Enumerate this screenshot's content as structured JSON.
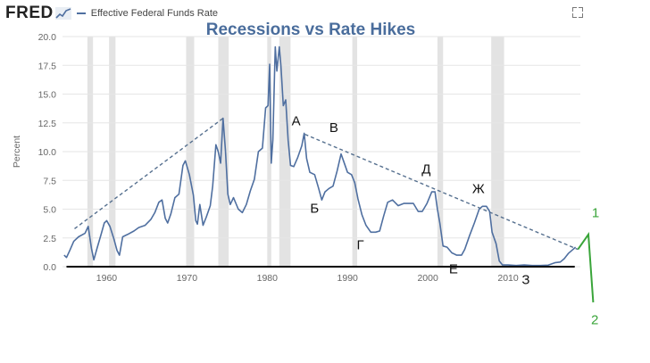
{
  "header": {
    "logo_text": "FRED",
    "legend_label": "Effective Federal Funds Rate"
  },
  "icons": {
    "logo_graph": "fred-graph-icon",
    "expand": "expand-icon"
  },
  "colors": {
    "series": "#4f6fa0",
    "recession": "#e3e3e3",
    "title": "#4a6d9c",
    "trend": "#56708f",
    "annotation": "#111111",
    "annotation_green": "#3aa53a"
  },
  "chart_data": {
    "type": "line",
    "title": "Recessions vs Rate Hikes",
    "ylabel": "Percent",
    "xlim": [
      1954.5,
      2019.0
    ],
    "ylim": [
      0,
      20
    ],
    "yticks": [
      "0.0",
      "2.5",
      "5.0",
      "7.5",
      "10.0",
      "12.5",
      "15.0",
      "17.5",
      "20.0"
    ],
    "xticks": [
      "1960",
      "1970",
      "1980",
      "1990",
      "2000",
      "2010"
    ],
    "grid": "horizontal",
    "recessions": [
      [
        1957.6,
        1958.3
      ],
      [
        1960.3,
        1961.1
      ],
      [
        1969.9,
        1970.9
      ],
      [
        1973.9,
        1975.2
      ],
      [
        1980.0,
        1980.5
      ],
      [
        1981.5,
        1982.9
      ],
      [
        1990.6,
        1991.2
      ],
      [
        2001.2,
        2001.9
      ],
      [
        2007.9,
        2009.5
      ]
    ],
    "series": [
      {
        "name": "Effective Federal Funds Rate",
        "points": [
          [
            1954.7,
            1.0
          ],
          [
            1955.0,
            0.8
          ],
          [
            1955.4,
            1.4
          ],
          [
            1955.9,
            2.2
          ],
          [
            1956.5,
            2.6
          ],
          [
            1957.3,
            2.9
          ],
          [
            1957.7,
            3.5
          ],
          [
            1958.1,
            1.6
          ],
          [
            1958.4,
            0.6
          ],
          [
            1958.8,
            1.6
          ],
          [
            1959.3,
            2.8
          ],
          [
            1959.7,
            3.8
          ],
          [
            1960.0,
            4.0
          ],
          [
            1960.4,
            3.5
          ],
          [
            1960.9,
            2.4
          ],
          [
            1961.3,
            1.4
          ],
          [
            1961.6,
            1.0
          ],
          [
            1962.0,
            2.6
          ],
          [
            1962.6,
            2.8
          ],
          [
            1963.4,
            3.1
          ],
          [
            1964.0,
            3.4
          ],
          [
            1964.8,
            3.6
          ],
          [
            1965.5,
            4.1
          ],
          [
            1966.0,
            4.7
          ],
          [
            1966.5,
            5.6
          ],
          [
            1966.9,
            5.8
          ],
          [
            1967.3,
            4.2
          ],
          [
            1967.6,
            3.8
          ],
          [
            1968.0,
            4.6
          ],
          [
            1968.5,
            6.0
          ],
          [
            1969.0,
            6.3
          ],
          [
            1969.5,
            8.8
          ],
          [
            1969.8,
            9.2
          ],
          [
            1970.3,
            8.0
          ],
          [
            1970.8,
            6.2
          ],
          [
            1971.1,
            4.0
          ],
          [
            1971.3,
            3.7
          ],
          [
            1971.6,
            5.4
          ],
          [
            1972.0,
            3.6
          ],
          [
            1972.4,
            4.3
          ],
          [
            1972.9,
            5.3
          ],
          [
            1973.2,
            7.0
          ],
          [
            1973.6,
            10.6
          ],
          [
            1973.9,
            10.0
          ],
          [
            1974.2,
            9.0
          ],
          [
            1974.5,
            12.9
          ],
          [
            1974.8,
            10.1
          ],
          [
            1975.1,
            6.3
          ],
          [
            1975.4,
            5.4
          ],
          [
            1975.8,
            6.0
          ],
          [
            1976.4,
            5.0
          ],
          [
            1976.9,
            4.7
          ],
          [
            1977.4,
            5.4
          ],
          [
            1977.9,
            6.6
          ],
          [
            1978.4,
            7.6
          ],
          [
            1978.9,
            10.0
          ],
          [
            1979.4,
            10.3
          ],
          [
            1979.8,
            13.8
          ],
          [
            1980.1,
            14.0
          ],
          [
            1980.3,
            17.6
          ],
          [
            1980.5,
            9.0
          ],
          [
            1980.7,
            11.0
          ],
          [
            1980.9,
            16.5
          ],
          [
            1981.0,
            19.1
          ],
          [
            1981.2,
            17.0
          ],
          [
            1981.5,
            19.1
          ],
          [
            1981.7,
            17.5
          ],
          [
            1982.0,
            14.0
          ],
          [
            1982.3,
            14.5
          ],
          [
            1982.6,
            11.0
          ],
          [
            1982.9,
            8.8
          ],
          [
            1983.3,
            8.7
          ],
          [
            1983.8,
            9.5
          ],
          [
            1984.3,
            10.5
          ],
          [
            1984.6,
            11.6
          ],
          [
            1984.9,
            9.4
          ],
          [
            1985.3,
            8.2
          ],
          [
            1985.9,
            8.0
          ],
          [
            1986.4,
            6.8
          ],
          [
            1986.8,
            5.8
          ],
          [
            1987.2,
            6.5
          ],
          [
            1987.7,
            6.8
          ],
          [
            1988.2,
            7.0
          ],
          [
            1988.7,
            8.3
          ],
          [
            1989.2,
            9.8
          ],
          [
            1989.5,
            9.2
          ],
          [
            1990.0,
            8.2
          ],
          [
            1990.5,
            8.0
          ],
          [
            1990.9,
            7.3
          ],
          [
            1991.3,
            5.9
          ],
          [
            1991.8,
            4.5
          ],
          [
            1992.3,
            3.6
          ],
          [
            1992.9,
            3.0
          ],
          [
            1993.5,
            3.0
          ],
          [
            1994.0,
            3.1
          ],
          [
            1994.5,
            4.4
          ],
          [
            1995.0,
            5.6
          ],
          [
            1995.6,
            5.8
          ],
          [
            1996.3,
            5.3
          ],
          [
            1997.0,
            5.5
          ],
          [
            1997.6,
            5.5
          ],
          [
            1998.2,
            5.5
          ],
          [
            1998.8,
            4.8
          ],
          [
            1999.3,
            4.8
          ],
          [
            1999.9,
            5.5
          ],
          [
            2000.5,
            6.5
          ],
          [
            2000.9,
            6.5
          ],
          [
            2001.2,
            5.0
          ],
          [
            2001.5,
            3.8
          ],
          [
            2001.9,
            1.8
          ],
          [
            2002.4,
            1.7
          ],
          [
            2003.0,
            1.2
          ],
          [
            2003.6,
            1.0
          ],
          [
            2004.2,
            1.0
          ],
          [
            2004.6,
            1.5
          ],
          [
            2005.2,
            2.7
          ],
          [
            2005.8,
            3.8
          ],
          [
            2006.4,
            5.0
          ],
          [
            2006.8,
            5.25
          ],
          [
            2007.3,
            5.25
          ],
          [
            2007.7,
            4.8
          ],
          [
            2008.0,
            3.0
          ],
          [
            2008.5,
            2.0
          ],
          [
            2008.9,
            0.5
          ],
          [
            2009.3,
            0.15
          ],
          [
            2010.0,
            0.15
          ],
          [
            2011.0,
            0.1
          ],
          [
            2012.0,
            0.15
          ],
          [
            2013.0,
            0.1
          ],
          [
            2014.0,
            0.1
          ],
          [
            2015.0,
            0.13
          ],
          [
            2015.9,
            0.36
          ],
          [
            2016.5,
            0.4
          ],
          [
            2017.0,
            0.7
          ],
          [
            2017.5,
            1.15
          ],
          [
            2018.0,
            1.45
          ],
          [
            2018.4,
            1.7
          ]
        ]
      }
    ],
    "trendlines": [
      {
        "from": [
          1956.0,
          3.3
        ],
        "to": [
          1974.7,
          13.0
        ]
      },
      {
        "from": [
          1984.7,
          11.5
        ],
        "to": [
          2018.7,
          1.5
        ]
      }
    ],
    "baseline_segments": [
      {
        "from": [
          1955.0,
          0.0
        ],
        "to": [
          2018.3,
          0.0
        ]
      }
    ],
    "annotations": [
      {
        "text": "А",
        "x": 1983.6,
        "y": 12.3
      },
      {
        "text": "Б",
        "x": 1985.9,
        "y": 4.7
      },
      {
        "text": "В",
        "x": 1988.3,
        "y": 11.7
      },
      {
        "text": "Г",
        "x": 1991.6,
        "y": 1.5
      },
      {
        "text": "Д",
        "x": 1999.8,
        "y": 8.1
      },
      {
        "text": "Е",
        "x": 2003.2,
        "y": -0.6
      },
      {
        "text": "Ж",
        "x": 2006.3,
        "y": 6.4
      },
      {
        "text": "З",
        "x": 2012.2,
        "y": -1.5
      }
    ],
    "green_annotations": [
      {
        "text": "1",
        "x": 2020.9,
        "y": 4.3
      },
      {
        "text": "2",
        "x": 2020.8,
        "y": -5.0
      }
    ],
    "green_path": [
      [
        2018.7,
        1.5
      ],
      [
        2020.0,
        2.8
      ],
      [
        2020.6,
        -3.1
      ]
    ]
  }
}
